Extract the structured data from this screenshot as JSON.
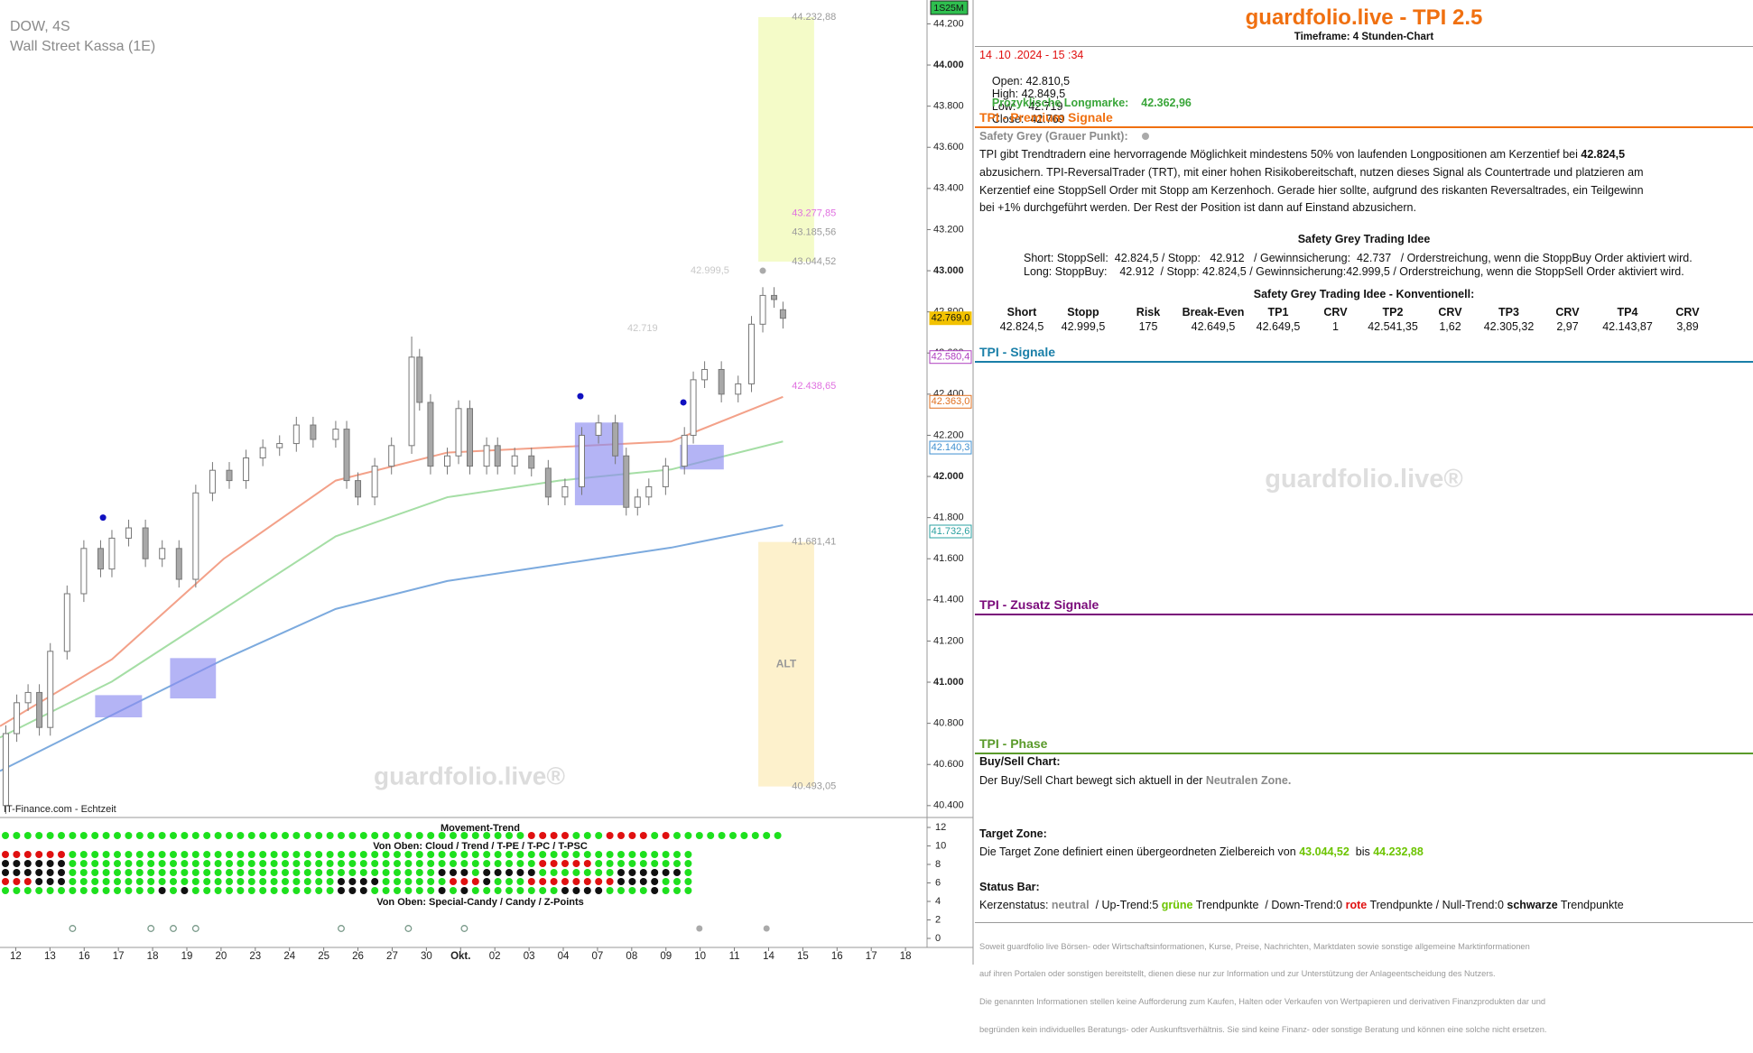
{
  "chart_data": {
    "type": "candlestick",
    "title": "DOW, 4S",
    "subtitle": "Wall Street Kassa (1E)",
    "source": "IT-Finance.com - Echtzeit",
    "watermark": "guardfolio.live®",
    "badge": "1S25M",
    "xlim": [
      -0.46,
      26.63
    ],
    "ylim": [
      40351,
      44316
    ],
    "xticks": [
      {
        "value": 0,
        "label": "12"
      },
      {
        "value": 1,
        "label": "13"
      },
      {
        "value": 2,
        "label": "16"
      },
      {
        "value": 3,
        "label": "17"
      },
      {
        "value": 4,
        "label": "18"
      },
      {
        "value": 5,
        "label": "19"
      },
      {
        "value": 6,
        "label": "20"
      },
      {
        "value": 7,
        "label": "23"
      },
      {
        "value": 8,
        "label": "24"
      },
      {
        "value": 9,
        "label": "25"
      },
      {
        "value": 10,
        "label": "26"
      },
      {
        "value": 11,
        "label": "27"
      },
      {
        "value": 12,
        "label": "30"
      },
      {
        "value": 13,
        "label": "Okt."
      },
      {
        "value": 14,
        "label": "02"
      },
      {
        "value": 15,
        "label": "03"
      },
      {
        "value": 16,
        "label": "04"
      },
      {
        "value": 17,
        "label": "07"
      },
      {
        "value": 18,
        "label": "08"
      },
      {
        "value": 19,
        "label": "09"
      },
      {
        "value": 20,
        "label": "10"
      },
      {
        "value": 21,
        "label": "11"
      },
      {
        "value": 22,
        "label": "14"
      },
      {
        "value": 23,
        "label": "15"
      },
      {
        "value": 24,
        "label": "16"
      },
      {
        "value": 25,
        "label": "17"
      },
      {
        "value": 26,
        "label": "18"
      }
    ],
    "yticks": [
      {
        "value": 40400,
        "label": "40.400"
      },
      {
        "value": 40600,
        "label": "40.600"
      },
      {
        "value": 40800,
        "label": "40.800"
      },
      {
        "value": 41000,
        "label": "41.000"
      },
      {
        "value": 41200,
        "label": "41.200"
      },
      {
        "value": 41400,
        "label": "41.400"
      },
      {
        "value": 41600,
        "label": "41.600"
      },
      {
        "value": 41800,
        "label": "41.800"
      },
      {
        "value": 42000,
        "label": "42.000"
      },
      {
        "value": 42200,
        "label": "42.200"
      },
      {
        "value": 42400,
        "label": "42.400"
      },
      {
        "value": 42600,
        "label": "42.600"
      },
      {
        "value": 42800,
        "label": "42.800"
      },
      {
        "value": 43000,
        "label": "43.000"
      },
      {
        "value": 43200,
        "label": "43.200"
      },
      {
        "value": 43400,
        "label": "43.400"
      },
      {
        "value": 43600,
        "label": "43.600"
      },
      {
        "value": 43800,
        "label": "43.800"
      },
      {
        "value": 44000,
        "label": "44.000"
      },
      {
        "value": 44200,
        "label": "44.200"
      }
    ],
    "candles": {
      "up_color": "#ffffff",
      "down_color": "#a8a8a8",
      "edge_color": "#777777",
      "x": [
        -0.29,
        0.03,
        0.36,
        0.69,
        1.01,
        1.5,
        1.99,
        2.48,
        2.81,
        3.3,
        3.79,
        4.28,
        4.77,
        5.26,
        5.75,
        6.24,
        6.73,
        7.22,
        7.71,
        8.2,
        8.69,
        9.35,
        9.67,
        10,
        10.49,
        10.98,
        11.57,
        11.8,
        12.12,
        12.61,
        12.94,
        13.27,
        13.76,
        14.08,
        14.58,
        15.07,
        15.56,
        16.05,
        16.54,
        17.03,
        17.52,
        17.84,
        18.17,
        18.5,
        18.99,
        19.54,
        19.8,
        20.13,
        20.62,
        21.11,
        21.5,
        21.83,
        22.16,
        22.42
      ],
      "open": [
        40400,
        40750,
        40900,
        40950,
        40780,
        41150,
        41430,
        41650,
        41550,
        41700,
        41750,
        41600,
        41650,
        41500,
        41920,
        42030,
        41980,
        42090,
        42140,
        42160,
        42250,
        42180,
        42230,
        41980,
        41900,
        42050,
        42150,
        42580,
        42360,
        42050,
        42100,
        42330,
        42050,
        42150,
        42050,
        42100,
        42040,
        41900,
        41950,
        42200,
        42260,
        42100,
        41850,
        41900,
        41950,
        42050,
        42200,
        42470,
        42520,
        42400,
        42450,
        42740,
        42880,
        42810.5
      ],
      "high": [
        40790,
        40940,
        40990,
        40990,
        41190,
        41470,
        41690,
        41690,
        41740,
        41790,
        41790,
        41690,
        41690,
        41960,
        42070,
        42070,
        42130,
        42180,
        42200,
        42290,
        42290,
        42270,
        42270,
        42020,
        42090,
        42190,
        42680,
        42620,
        42400,
        42140,
        42370,
        42370,
        42190,
        42190,
        42140,
        42140,
        42080,
        41990,
        42240,
        42300,
        42300,
        42140,
        41940,
        41990,
        42090,
        42240,
        42510,
        42560,
        42560,
        42490,
        42780,
        42920,
        42920,
        42849.5
      ],
      "low": [
        40360,
        40710,
        40860,
        40740,
        40740,
        41110,
        41390,
        41510,
        41510,
        41660,
        41560,
        41560,
        41460,
        41460,
        41880,
        41940,
        41940,
        42050,
        42100,
        42120,
        42140,
        42140,
        41940,
        41860,
        41860,
        42010,
        42110,
        42320,
        42010,
        42010,
        42060,
        42010,
        42010,
        42010,
        42010,
        42000,
        41860,
        41860,
        41910,
        42160,
        42060,
        41810,
        41810,
        41860,
        41910,
        42010,
        42160,
        42430,
        42360,
        42360,
        42410,
        42700,
        42820,
        42719
      ],
      "close": [
        40750,
        40900,
        40950,
        40780,
        41150,
        41430,
        41650,
        41550,
        41700,
        41750,
        41600,
        41650,
        41500,
        41920,
        42030,
        41980,
        42090,
        42140,
        42160,
        42250,
        42180,
        42230,
        41980,
        41900,
        42050,
        42150,
        42580,
        42360,
        42050,
        42100,
        42330,
        42050,
        42150,
        42050,
        42100,
        42040,
        41900,
        41950,
        42200,
        42260,
        42100,
        41850,
        41900,
        41950,
        42050,
        42200,
        42470,
        42520,
        42400,
        42450,
        42740,
        42880,
        42860,
        42769
      ]
    },
    "ribbons": {
      "x": [
        -0.46,
        2.81,
        6.08,
        9.35,
        12.61,
        15.88,
        19.15,
        22.42
      ],
      "series": [
        {
          "color": "#5b95d6",
          "values": [
            40568,
            40840,
            41111,
            41356,
            41492,
            41573,
            41654,
            41763
          ]
        },
        {
          "color": "#8fd68f",
          "values": [
            40731,
            41003,
            41356,
            41709,
            41899,
            41980,
            42034,
            42170
          ]
        },
        {
          "color": "#f08a6c",
          "values": [
            40786,
            41111,
            41600,
            41980,
            42116,
            42143,
            42170,
            42387
          ]
        }
      ]
    },
    "zones": [
      {
        "xrange": [
          21.7,
          23.33
        ],
        "range": [
          43044.52,
          44232.88
        ],
        "color": "#f4fbc8"
      },
      {
        "xrange": [
          21.7,
          23.33
        ],
        "range": [
          40493.05,
          41681.41
        ],
        "color": "#fdf1cc",
        "label": "ALT"
      }
    ],
    "boxes": [
      {
        "xrange": [
          2.32,
          3.69
        ],
        "range": [
          40829,
          40937
        ]
      },
      {
        "xrange": [
          4.51,
          5.85
        ],
        "range": [
          40921,
          41117
        ]
      },
      {
        "xrange": [
          16.34,
          17.75
        ],
        "range": [
          41860,
          42262
        ]
      },
      {
        "xrange": [
          19.41,
          20.69
        ],
        "range": [
          42034,
          42154
        ]
      }
    ],
    "box_color": "#8c8cf0",
    "markers": [
      {
        "x": 2.55,
        "y": 41800,
        "color": "#1010c0"
      },
      {
        "x": 16.5,
        "y": 42390,
        "color": "#1010c0"
      },
      {
        "x": 19.51,
        "y": 42360,
        "color": "#1010c0"
      },
      {
        "x": 21.83,
        "y": 43000,
        "color": "#aaaaaa"
      }
    ],
    "annotations": [
      {
        "x": 22.68,
        "value": 44232.88,
        "label": "44.232,88",
        "color": "#9a9a9a"
      },
      {
        "x": 22.68,
        "value": 43277.85,
        "label": "43.277,85",
        "color": "#e070e0"
      },
      {
        "x": 22.68,
        "value": 43185.56,
        "label": "43.185,56",
        "color": "#9a9a9a"
      },
      {
        "x": 22.68,
        "value": 43044.52,
        "label": "43.044,52",
        "color": "#9a9a9a"
      },
      {
        "x": 20.85,
        "value": 42999.5,
        "label": "42.999,5",
        "color": "#c8c8c8",
        "anchor": "end"
      },
      {
        "x": 18.76,
        "value": 42719,
        "label": "42.719",
        "color": "#c8c8c8",
        "anchor": "end"
      },
      {
        "x": 22.68,
        "value": 42438.65,
        "label": "42.438,65",
        "color": "#e070e0"
      },
      {
        "x": 22.68,
        "value": 41681.41,
        "label": "41.681,41",
        "color": "#9a9a9a"
      },
      {
        "x": 22.68,
        "value": 40493.05,
        "label": "40.493,05",
        "color": "#9a9a9a"
      }
    ],
    "axis_markers": [
      {
        "value": 42769,
        "label": "42.769,0",
        "color": "#f2c200"
      },
      {
        "value": 42580.4,
        "label": "42.580,4",
        "color": "#b040c0"
      },
      {
        "value": 42363,
        "label": "42.363,0",
        "color": "#e07020"
      },
      {
        "value": 42140.3,
        "label": "42.140,3",
        "color": "#4090d0"
      },
      {
        "value": 41732.6,
        "label": "41.732,6",
        "color": "#2aa0a0"
      }
    ],
    "indicators": {
      "yticks": [
        0,
        2,
        4,
        6,
        8,
        10,
        12
      ],
      "labels": [
        "Movement-Trend",
        "Von Oben: Cloud / Trend / T-PE / T-PC / T-PSC",
        "Von Oben: Special-Candy / Candy / Z-Points"
      ],
      "colors": {
        "g": "#1ee01e",
        "r": "#e01010",
        "k": "#111111",
        "o": "#7a9a8a",
        "f": "#aaaaaa"
      },
      "rows": [
        "gggggggggggggggggggggggggggggggggggggggggggggggrrrrgggrrrrgrgggggggggg",
        "rrrrrrgggggggggggggggggggggggggggggggggggggggggggggggggggggggg",
        "kkkkkkggggggggggggggggggggggggggggggggggggggggggrrrrrggggggggg",
        "kkkkkkgggggggggggggggggggggggggggggggggkkkgkkkkkgggggggkkkkkkg",
        "rrrkkkggggggggggggggggggggggggkkkkggggggrrrkgggrrrrrrrrkkkkggg",
        "ggggggggggggggkgkgggggggggggggkkkggggggkgkggggggggkkkkggggkggg",
        "......o......o.o.o............o.....o....o....................f.....f.."
      ]
    }
  },
  "panel": {
    "title": "guardfolio.live - TPI 2.5",
    "timeframe": "Timeframe: 4 Stunden-Chart",
    "datetime": "14 .10 .2024 - 15 :34",
    "ohlc": [
      {
        "label": "Open:",
        "value": "42.810,5"
      },
      {
        "label": "High:",
        "value": "42.849,5"
      },
      {
        "label": "Low:",
        "value": "42.719"
      },
      {
        "label": "Close:",
        "value": "42.769"
      }
    ],
    "longmarke": {
      "label": "Prozyklische Longmarke:",
      "value": "42.362,96"
    },
    "premium": {
      "title": "TPI - Premium Signale",
      "safety_label": "Safety Grey (Grauer Punkt):",
      "paragraph": [
        "TPI gibt Trendtradern eine hervorragende Möglichkeit mindestens 50% von laufenden Longpositionen am Kerzentief bei",
        "42.824,5",
        "abzusichern. TPI-ReversalTrader (TRT), mit einer hohen Risikobereitschaft, nutzen dieses Signal als Countertrade und platzieren am",
        "Kerzentief eine StoppSell Order mit Stopp am Kerzenhoch. Gerade hier sollte, aufgrund des riskanten Reversaltrades, ein Teilgewinn",
        "bei +1% durchgeführt werden. Der Rest der Position ist dann auf Einstand abzusichern."
      ],
      "idea_title": "Safety Grey Trading Idee",
      "idea_lines": [
        "Short: StoppSell:  42.824,5 / Stopp:   42.912   / Gewinnsicherung:  42.737   / Orderstreichung, wenn die StoppBuy Order aktiviert wird.",
        "Long: StoppBuy:    42.912  / Stopp: 42.824,5 / Gewinnsicherung:42.999,5 / Orderstreichung, wenn die StoppSell Order aktiviert wird."
      ],
      "table_title": "Safety Grey Trading Idee - Konventionell:",
      "table": {
        "header": [
          "Short",
          "Stopp",
          "Risk",
          "Break-Even",
          "TP1",
          "CRV",
          "TP2",
          "CRV",
          "TP3",
          "CRV",
          "TP4",
          "CRV"
        ],
        "row": [
          "42.824,5",
          "42.999,5",
          "175",
          "42.649,5",
          "42.649,5",
          "1",
          "42.541,35",
          "1,62",
          "42.305,32",
          "2,97",
          "42.143,87",
          "3,89"
        ]
      }
    },
    "signale_title": "TPI - Signale",
    "watermark": "guardfolio.live®",
    "zusatz_title": "TPI - Zusatz Signale",
    "phase": {
      "title": "TPI - Phase",
      "buysell_title": "Buy/Sell Chart:",
      "buysell_text": [
        "Der Buy/Sell Chart bewegt sich aktuell in der",
        "Neutralen Zone."
      ],
      "target_title": "Target Zone:",
      "target_text": [
        "Die Target Zone definiert einen übergeordneten Zielbereich von",
        "43.044,52",
        "bis",
        "44.232,88"
      ],
      "status_title": "Status Bar:",
      "status_text": [
        "Kerzenstatus:",
        "neutral",
        "/ Up-Trend:5",
        "grüne",
        "Trendpunkte  / Down-Trend:0",
        "rote",
        "Trendpunkte / Null-Trend:0",
        "schwarze",
        "Trendpunkte"
      ]
    },
    "disclaimer": [
      "Soweit guardfolio live Börsen- oder Wirtschaftsinformationen, Kurse, Preise, Nachrichten, Marktdaten sowie sonstige allgemeine Marktinformationen",
      "auf ihren Portalen oder sonstigen bereitstellt, dienen diese nur zur Information und zur Unterstützung der Anlageentscheidung des Nutzers.",
      "Die genannten Informationen stellen keine Aufforderung zum Kaufen, Halten oder Verkaufen von Wertpapieren und derivativen Finanzprodukten dar und",
      "begründen kein individuelles Beratungs- oder Auskunftsverhältnis. Sie sind keine Finanz- oder sonstige Beratung und können eine solche nicht ersetzen."
    ]
  }
}
